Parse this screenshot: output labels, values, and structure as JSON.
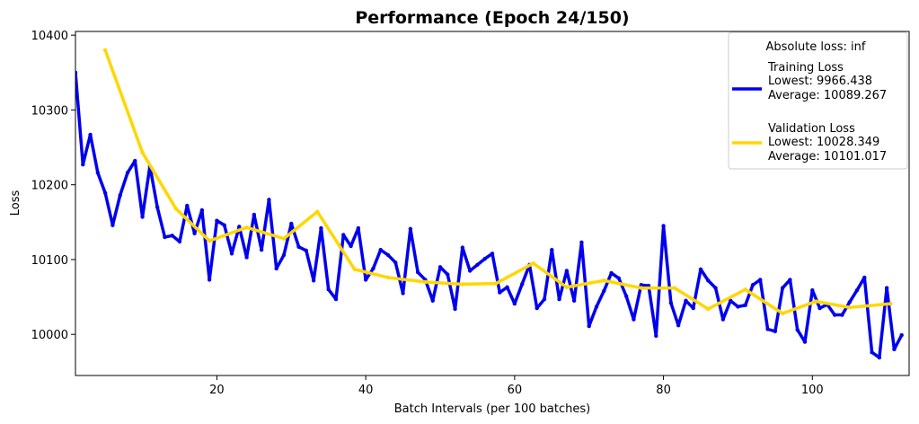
{
  "chart_data": {
    "type": "line",
    "title": "Performance (Epoch 24/150)",
    "xlabel": "Batch Intervals (per 100 batches)",
    "ylabel": "Loss",
    "xlim": [
      1,
      113
    ],
    "ylim": [
      9945,
      10405
    ],
    "xticks": [
      20,
      40,
      60,
      80,
      100
    ],
    "yticks": [
      10000,
      10100,
      10200,
      10300,
      10400
    ],
    "grid": false,
    "legend": {
      "position": "top-right",
      "title": "Absolute loss: inf",
      "entries": [
        {
          "lines": [
            "Training Loss",
            "Lowest: 9966.438",
            "Average: 10089.267"
          ],
          "color": "#0000ee"
        },
        {
          "lines": [
            "Validation Loss",
            "Lowest: 10028.349",
            "Average: 10101.017"
          ],
          "color": "#ffd700"
        }
      ]
    },
    "series": [
      {
        "name": "Training Loss",
        "color": "#0000ee",
        "x": [
          1,
          2,
          3,
          4,
          5,
          6,
          7,
          8,
          9,
          10,
          11,
          12,
          13,
          14,
          15,
          16,
          17,
          18,
          19,
          20,
          21,
          22,
          23,
          24,
          25,
          26,
          27,
          28,
          29,
          30,
          31,
          32,
          33,
          34,
          35,
          36,
          37,
          38,
          39,
          40,
          41,
          42,
          43,
          44,
          45,
          46,
          47,
          48,
          49,
          50,
          51,
          52,
          53,
          54,
          55,
          56,
          57,
          58,
          59,
          60,
          61,
          62,
          63,
          64,
          65,
          66,
          67,
          68,
          69,
          70,
          71,
          72,
          73,
          74,
          75,
          76,
          77,
          78,
          79,
          80,
          81,
          82,
          83,
          84,
          85,
          86,
          87,
          88,
          89,
          90,
          91,
          92,
          93,
          94,
          95,
          96,
          97,
          98,
          99,
          100,
          101,
          102,
          103,
          104,
          105,
          106,
          107,
          108,
          109,
          110,
          111,
          112
        ],
        "y": [
          10350,
          10227,
          10267,
          10216,
          10189,
          10146,
          10186,
          10216,
          10232,
          10157,
          10225,
          10170,
          10130,
          10132,
          10124,
          10172,
          10135,
          10166,
          10073,
          10152,
          10146,
          10108,
          10144,
          10103,
          10160,
          10113,
          10180,
          10088,
          10106,
          10148,
          10117,
          10112,
          10072,
          10142,
          10060,
          10047,
          10133,
          10118,
          10142,
          10073,
          10088,
          10113,
          10106,
          10096,
          10055,
          10141,
          10083,
          10073,
          10045,
          10090,
          10080,
          10034,
          10116,
          10085,
          10093,
          10101,
          10108,
          10056,
          10063,
          10041,
          10067,
          10093,
          10035,
          10047,
          10113,
          10047,
          10085,
          10045,
          10123,
          10011,
          10037,
          10058,
          10082,
          10075,
          10051,
          10020,
          10066,
          10065,
          9998,
          10145,
          10042,
          10012,
          10045,
          10035,
          10087,
          10072,
          10062,
          10020,
          10045,
          10037,
          10039,
          10066,
          10073,
          10007,
          10004,
          10062,
          10073,
          10006,
          9990,
          10059,
          10035,
          10040,
          10026,
          10026,
          10043,
          10059,
          10076,
          9976,
          9969,
          10062,
          9980,
          9999
        ]
      },
      {
        "name": "Validation Loss",
        "color": "#ffd700",
        "x": [
          5,
          10,
          14.5,
          19,
          24,
          29,
          33.5,
          38.5,
          43,
          48,
          53,
          57.5,
          62.5,
          67,
          72,
          77,
          81.5,
          86,
          91,
          96,
          100.5,
          105,
          110.5
        ],
        "y": [
          10380,
          10243,
          10168,
          10125,
          10143,
          10128,
          10164,
          10087,
          10076,
          10070,
          10067,
          10068,
          10095,
          10063,
          10072,
          10062,
          10062,
          10034,
          10060,
          10028,
          10044,
          10036,
          10041
        ]
      }
    ]
  }
}
